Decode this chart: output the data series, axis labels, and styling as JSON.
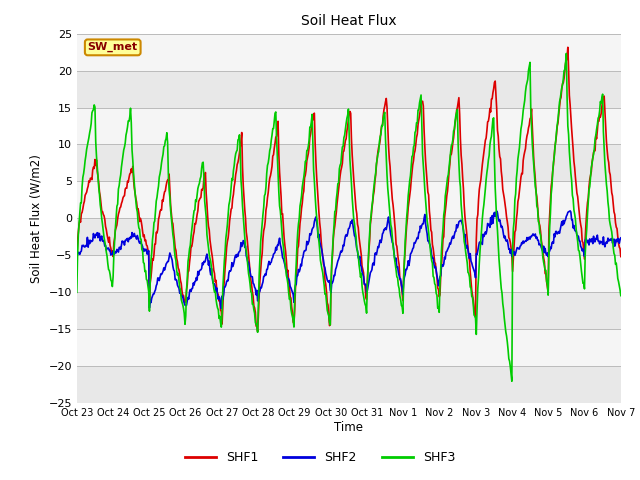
{
  "title": "Soil Heat Flux",
  "ylabel": "Soil Heat Flux (W/m2)",
  "xlabel": "Time",
  "ylim": [
    -25,
    25
  ],
  "fig_bg_color": "#ffffff",
  "plot_bg_color": "#ffffff",
  "grid_color": "#cccccc",
  "band_colors": [
    "#e8e8e8",
    "#f5f5f5"
  ],
  "shf1_color": "#dd0000",
  "shf2_color": "#0000dd",
  "shf3_color": "#00cc00",
  "annotation_text": "SW_met",
  "annotation_bg": "#ffff99",
  "annotation_border": "#cc8800",
  "annotation_text_color": "#880000",
  "legend_labels": [
    "SHF1",
    "SHF2",
    "SHF3"
  ],
  "xtick_labels": [
    "Oct 23",
    "Oct 24",
    "Oct 25",
    "Oct 26",
    "Oct 27",
    "Oct 28",
    "Oct 29",
    "Oct 30",
    "Oct 31",
    "Nov 1",
    "Nov 2",
    "Nov 3",
    "Nov 4",
    "Nov 5",
    "Nov 6",
    "Nov 7"
  ],
  "line_width": 1.2
}
